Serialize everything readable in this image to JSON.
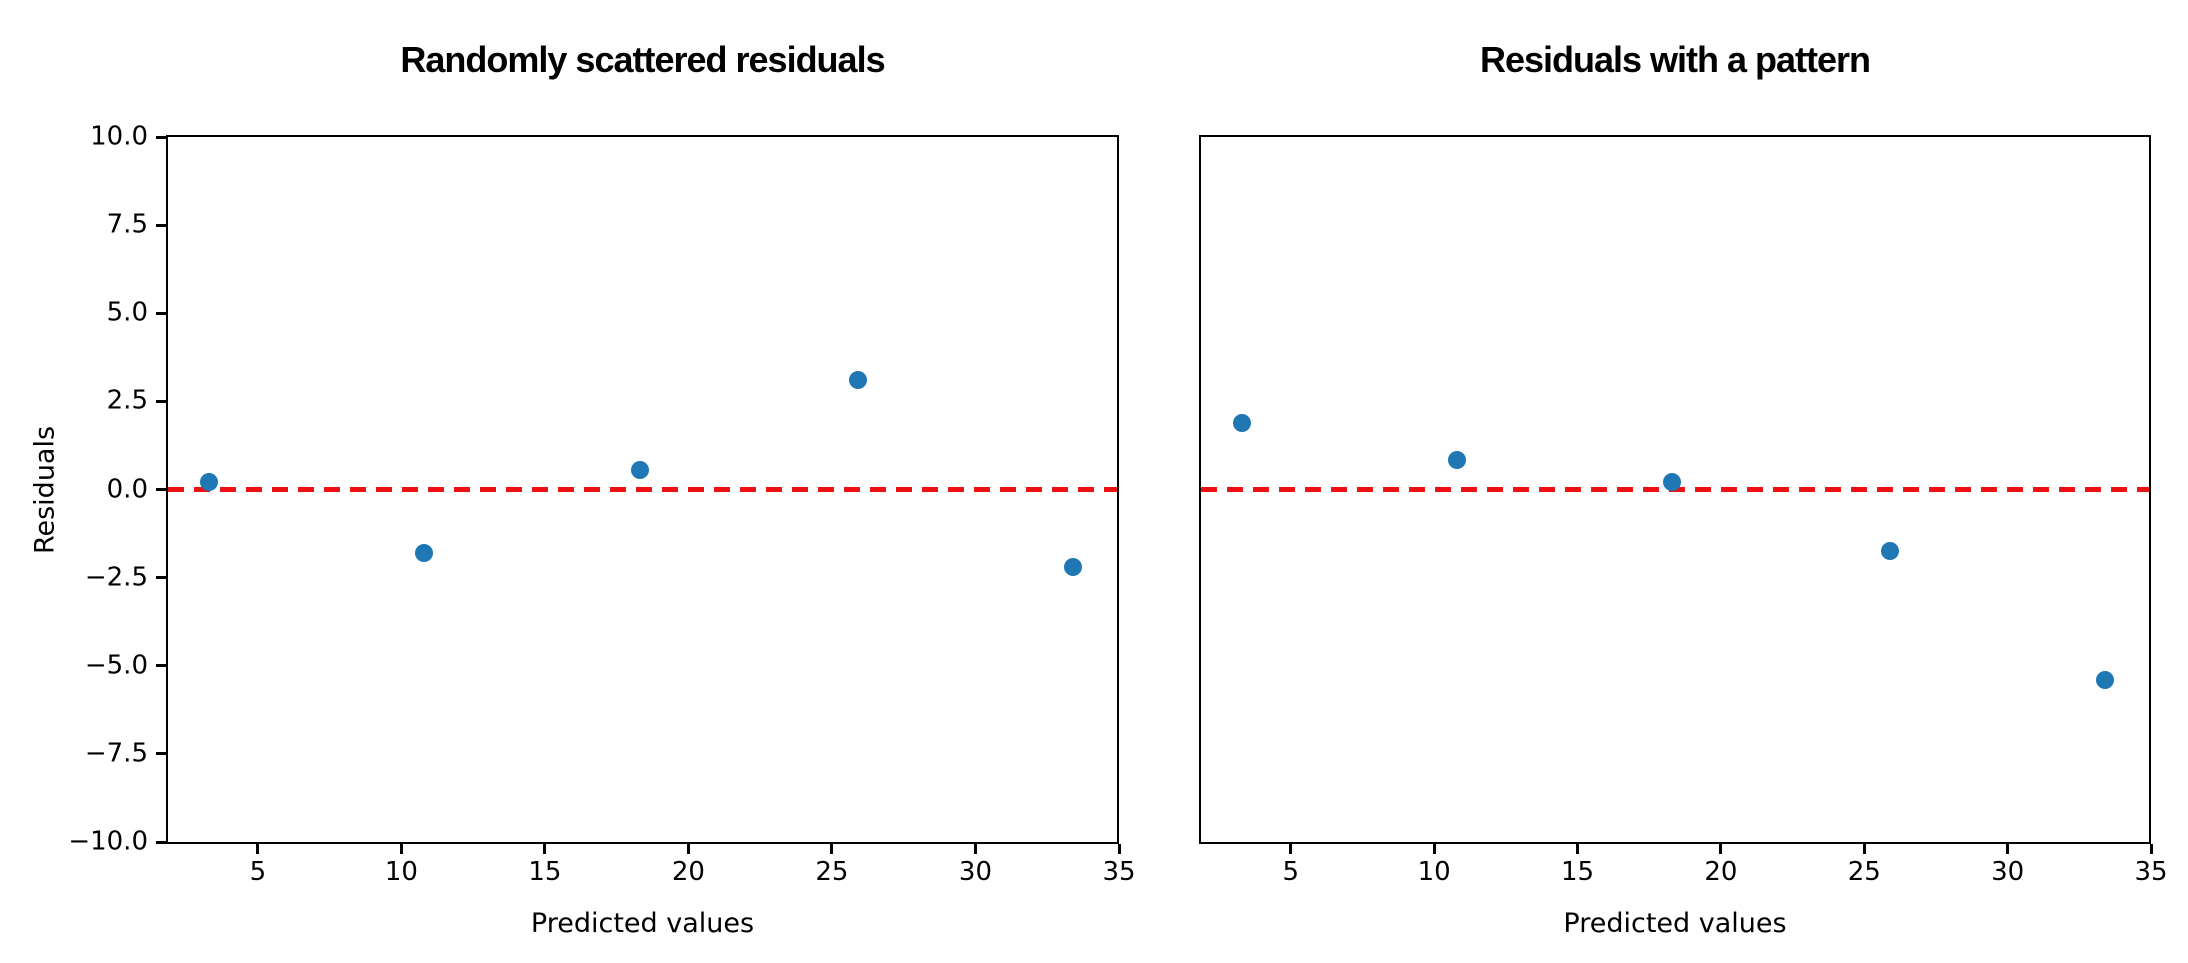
{
  "figure": {
    "background": "#ffffff",
    "marker_color": "#1f77b4",
    "zero_line_color": "#ee1111",
    "spine_color": "#000000"
  },
  "chart_data": [
    {
      "type": "scatter",
      "title": "Randomly scattered residuals",
      "xlabel": "Predicted values",
      "ylabel": "Residuals",
      "x": [
        3.3,
        10.8,
        18.3,
        25.9,
        33.4
      ],
      "y": [
        0.2,
        -1.8,
        0.55,
        3.1,
        -2.2
      ],
      "xlim": [
        1.8,
        35
      ],
      "ylim": [
        -10,
        10
      ],
      "xticks": [
        5,
        10,
        15,
        20,
        25,
        30,
        35
      ],
      "xtick_labels": [
        "5",
        "10",
        "15",
        "20",
        "25",
        "30",
        "35"
      ],
      "yticks": [
        10.0,
        7.5,
        5.0,
        2.5,
        0.0,
        -2.5,
        -5.0,
        -7.5,
        -10.0
      ],
      "ytick_labels": [
        "10.0",
        "7.5",
        "5.0",
        "2.5",
        "0.0",
        "−2.5",
        "−5.0",
        "−7.5",
        "−10.0"
      ],
      "show_ytick_labels": true,
      "zero_line_y": 0,
      "grid": false,
      "legend": "none"
    },
    {
      "type": "scatter",
      "title": "Residuals with a pattern",
      "xlabel": "Predicted values",
      "ylabel": "",
      "x": [
        3.3,
        10.8,
        18.3,
        25.9,
        33.4
      ],
      "y": [
        1.9,
        0.85,
        0.2,
        -1.75,
        -5.4
      ],
      "xlim": [
        1.8,
        35
      ],
      "ylim": [
        -10,
        10
      ],
      "xticks": [
        5,
        10,
        15,
        20,
        25,
        30,
        35
      ],
      "xtick_labels": [
        "5",
        "10",
        "15",
        "20",
        "25",
        "30",
        "35"
      ],
      "yticks": [],
      "ytick_labels": [],
      "show_ytick_labels": false,
      "zero_line_y": 0,
      "grid": false,
      "legend": "none"
    }
  ]
}
